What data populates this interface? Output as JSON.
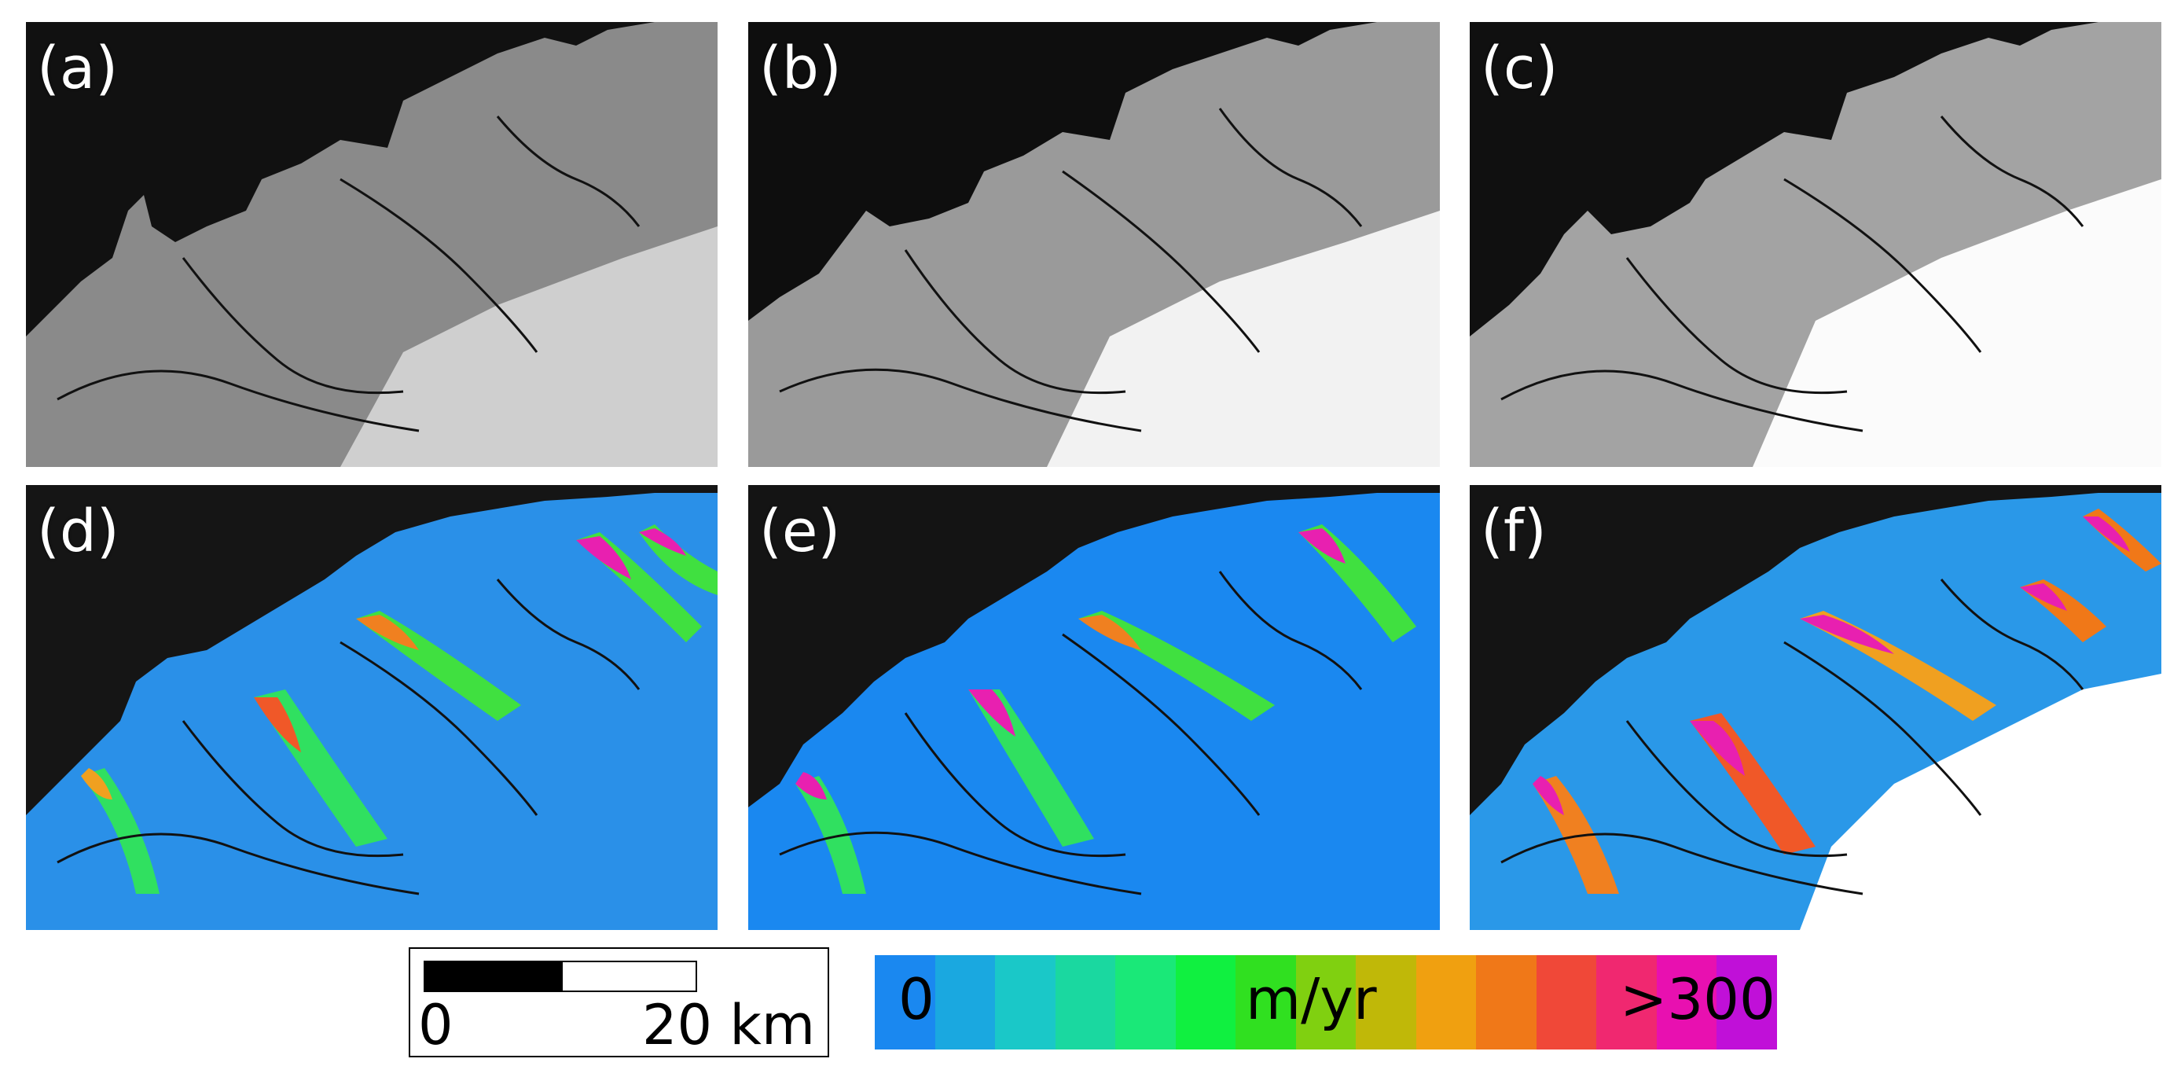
{
  "panels": [
    {
      "label": "(a)",
      "type": "grayscale",
      "brightness": 0.75
    },
    {
      "label": "(b)",
      "type": "grayscale",
      "brightness": 0.85
    },
    {
      "label": "(c)",
      "type": "grayscale",
      "brightness": 0.95
    },
    {
      "label": "(d)",
      "type": "velocity",
      "variant": 0
    },
    {
      "label": "(e)",
      "type": "velocity",
      "variant": 1
    },
    {
      "label": "(f)",
      "type": "velocity",
      "variant": 2
    }
  ],
  "scale_bar": {
    "zero_label": "0",
    "distance_label": "20 km"
  },
  "colorbar": {
    "min_label": "0",
    "unit_label": "m/yr",
    "max_label": ">300",
    "colors": [
      "#1a88f0",
      "#1aa8e0",
      "#1ac8c8",
      "#1ad8a0",
      "#1ae878",
      "#10f040",
      "#30e020",
      "#80d010",
      "#c0b808",
      "#f0a010",
      "#f07818",
      "#f04838",
      "#f02870",
      "#e810b0",
      "#c010d8"
    ]
  }
}
